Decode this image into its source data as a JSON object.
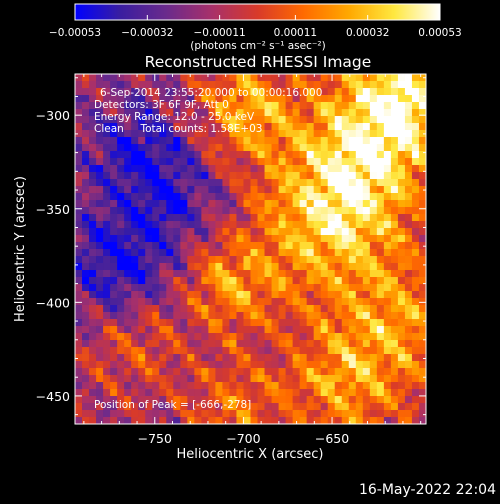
{
  "chart_data": {
    "type": "heatmap",
    "title": "Reconstructed RHESSI Image",
    "xlabel": "Heliocentric X (arcsec)",
    "ylabel": "Heliocentric Y (arcsec)",
    "xlim": [
      -795,
      -597
    ],
    "ylim": [
      -465,
      -278
    ],
    "x_ticks": [
      -750,
      -700,
      -650
    ],
    "y_ticks": [
      -300,
      -350,
      -400,
      -450
    ],
    "x_tick_labels": [
      "−750",
      "−700",
      "−650"
    ],
    "y_tick_labels": [
      "−300",
      "−350",
      "−400",
      "−450"
    ],
    "colorbar": {
      "range": [
        -0.00053,
        0.00053
      ],
      "tick_values": [
        -0.00053,
        -0.00032,
        -0.00011,
        0.00011,
        0.00032,
        0.00053
      ],
      "tick_labels": [
        "−0.00053",
        "−0.00032",
        "−0.00011",
        "0.00011",
        "0.00032",
        "0.00053"
      ],
      "unit": "(photons cm⁻² s⁻¹ asec⁻²)",
      "colors": [
        "#0000ff",
        "#3a1ea0",
        "#6a2a8c",
        "#a8306a",
        "#d83a2a",
        "#ff6a00",
        "#ffa800",
        "#ffe840",
        "#ffffff"
      ]
    },
    "grid": false,
    "annotations": {
      "time_range": "6-Sep-2014 23:55:20.000 to 00:00:16.000",
      "detectors": "Detectors: 3F 6F 9F, Att 0",
      "energy": "Energy Range: 12.0 - 25.0 keV",
      "clean": "Clean     Total counts: 1.58E+03",
      "peak": "Position of Peak = [-666,-278]"
    },
    "bright_regions": [
      {
        "x": -632,
        "y": -318,
        "level": 0.00045,
        "sigma": 30
      },
      {
        "x": -652,
        "y": -360,
        "level": 0.0004,
        "sigma": 28
      },
      {
        "x": -610,
        "y": -290,
        "level": 0.00042,
        "sigma": 20
      },
      {
        "x": -700,
        "y": -298,
        "level": 0.00038,
        "sigma": 18
      },
      {
        "x": -708,
        "y": -390,
        "level": 0.00032,
        "sigma": 18
      },
      {
        "x": -643,
        "y": -442,
        "level": 0.00035,
        "sigma": 24
      },
      {
        "x": -608,
        "y": -410,
        "level": 0.0003,
        "sigma": 22
      },
      {
        "x": -760,
        "y": -420,
        "level": 0.0002,
        "sigma": 18
      },
      {
        "x": -705,
        "y": -455,
        "level": 0.00022,
        "sigma": 18
      }
    ],
    "dim_regions": [
      {
        "x": -760,
        "y": -320,
        "level": -0.0003,
        "sigma": 22
      },
      {
        "x": -770,
        "y": -380,
        "level": -0.00035,
        "sigma": 22
      },
      {
        "x": -735,
        "y": -345,
        "level": -0.0002,
        "sigma": 18
      }
    ]
  },
  "footer": {
    "timestamp": "16-May-2022 22:04"
  }
}
